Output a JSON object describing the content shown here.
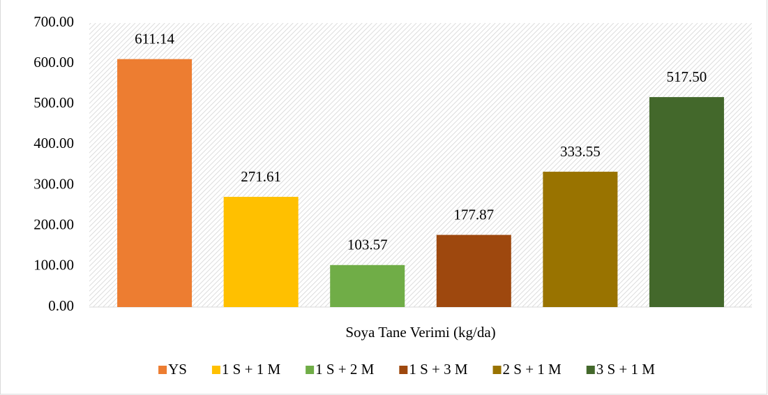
{
  "chart_data": {
    "type": "bar",
    "categories": [
      "Soya Tane Verimi (kg/da)"
    ],
    "series": [
      {
        "name": "YS",
        "color": "#ED7D31",
        "values": [
          611.14
        ]
      },
      {
        "name": "1 S + 1 M",
        "color": "#FFC000",
        "values": [
          271.61
        ]
      },
      {
        "name": "1 S + 2 M",
        "color": "#70AD47",
        "values": [
          103.57
        ]
      },
      {
        "name": "1 S + 3 M",
        "color": "#9E480E",
        "values": [
          177.87
        ]
      },
      {
        "name": "2 S + 1 M",
        "color": "#997300",
        "values": [
          333.55
        ]
      },
      {
        "name": "3 S + 1 M",
        "color": "#43682B",
        "values": [
          517.5
        ],
        "value_labels": [
          "517.50"
        ]
      }
    ],
    "ylim": [
      0,
      700
    ],
    "yticks": [
      {
        "value": 0,
        "label": "0.00"
      },
      {
        "value": 100,
        "label": "100.00"
      },
      {
        "value": 200,
        "label": "200.00"
      },
      {
        "value": 300,
        "label": "300.00"
      },
      {
        "value": 400,
        "label": "400.00"
      },
      {
        "value": 500,
        "label": "500.00"
      },
      {
        "value": 600,
        "label": "600.00"
      },
      {
        "value": 700,
        "label": "700.00"
      }
    ],
    "legend": "bottom"
  }
}
